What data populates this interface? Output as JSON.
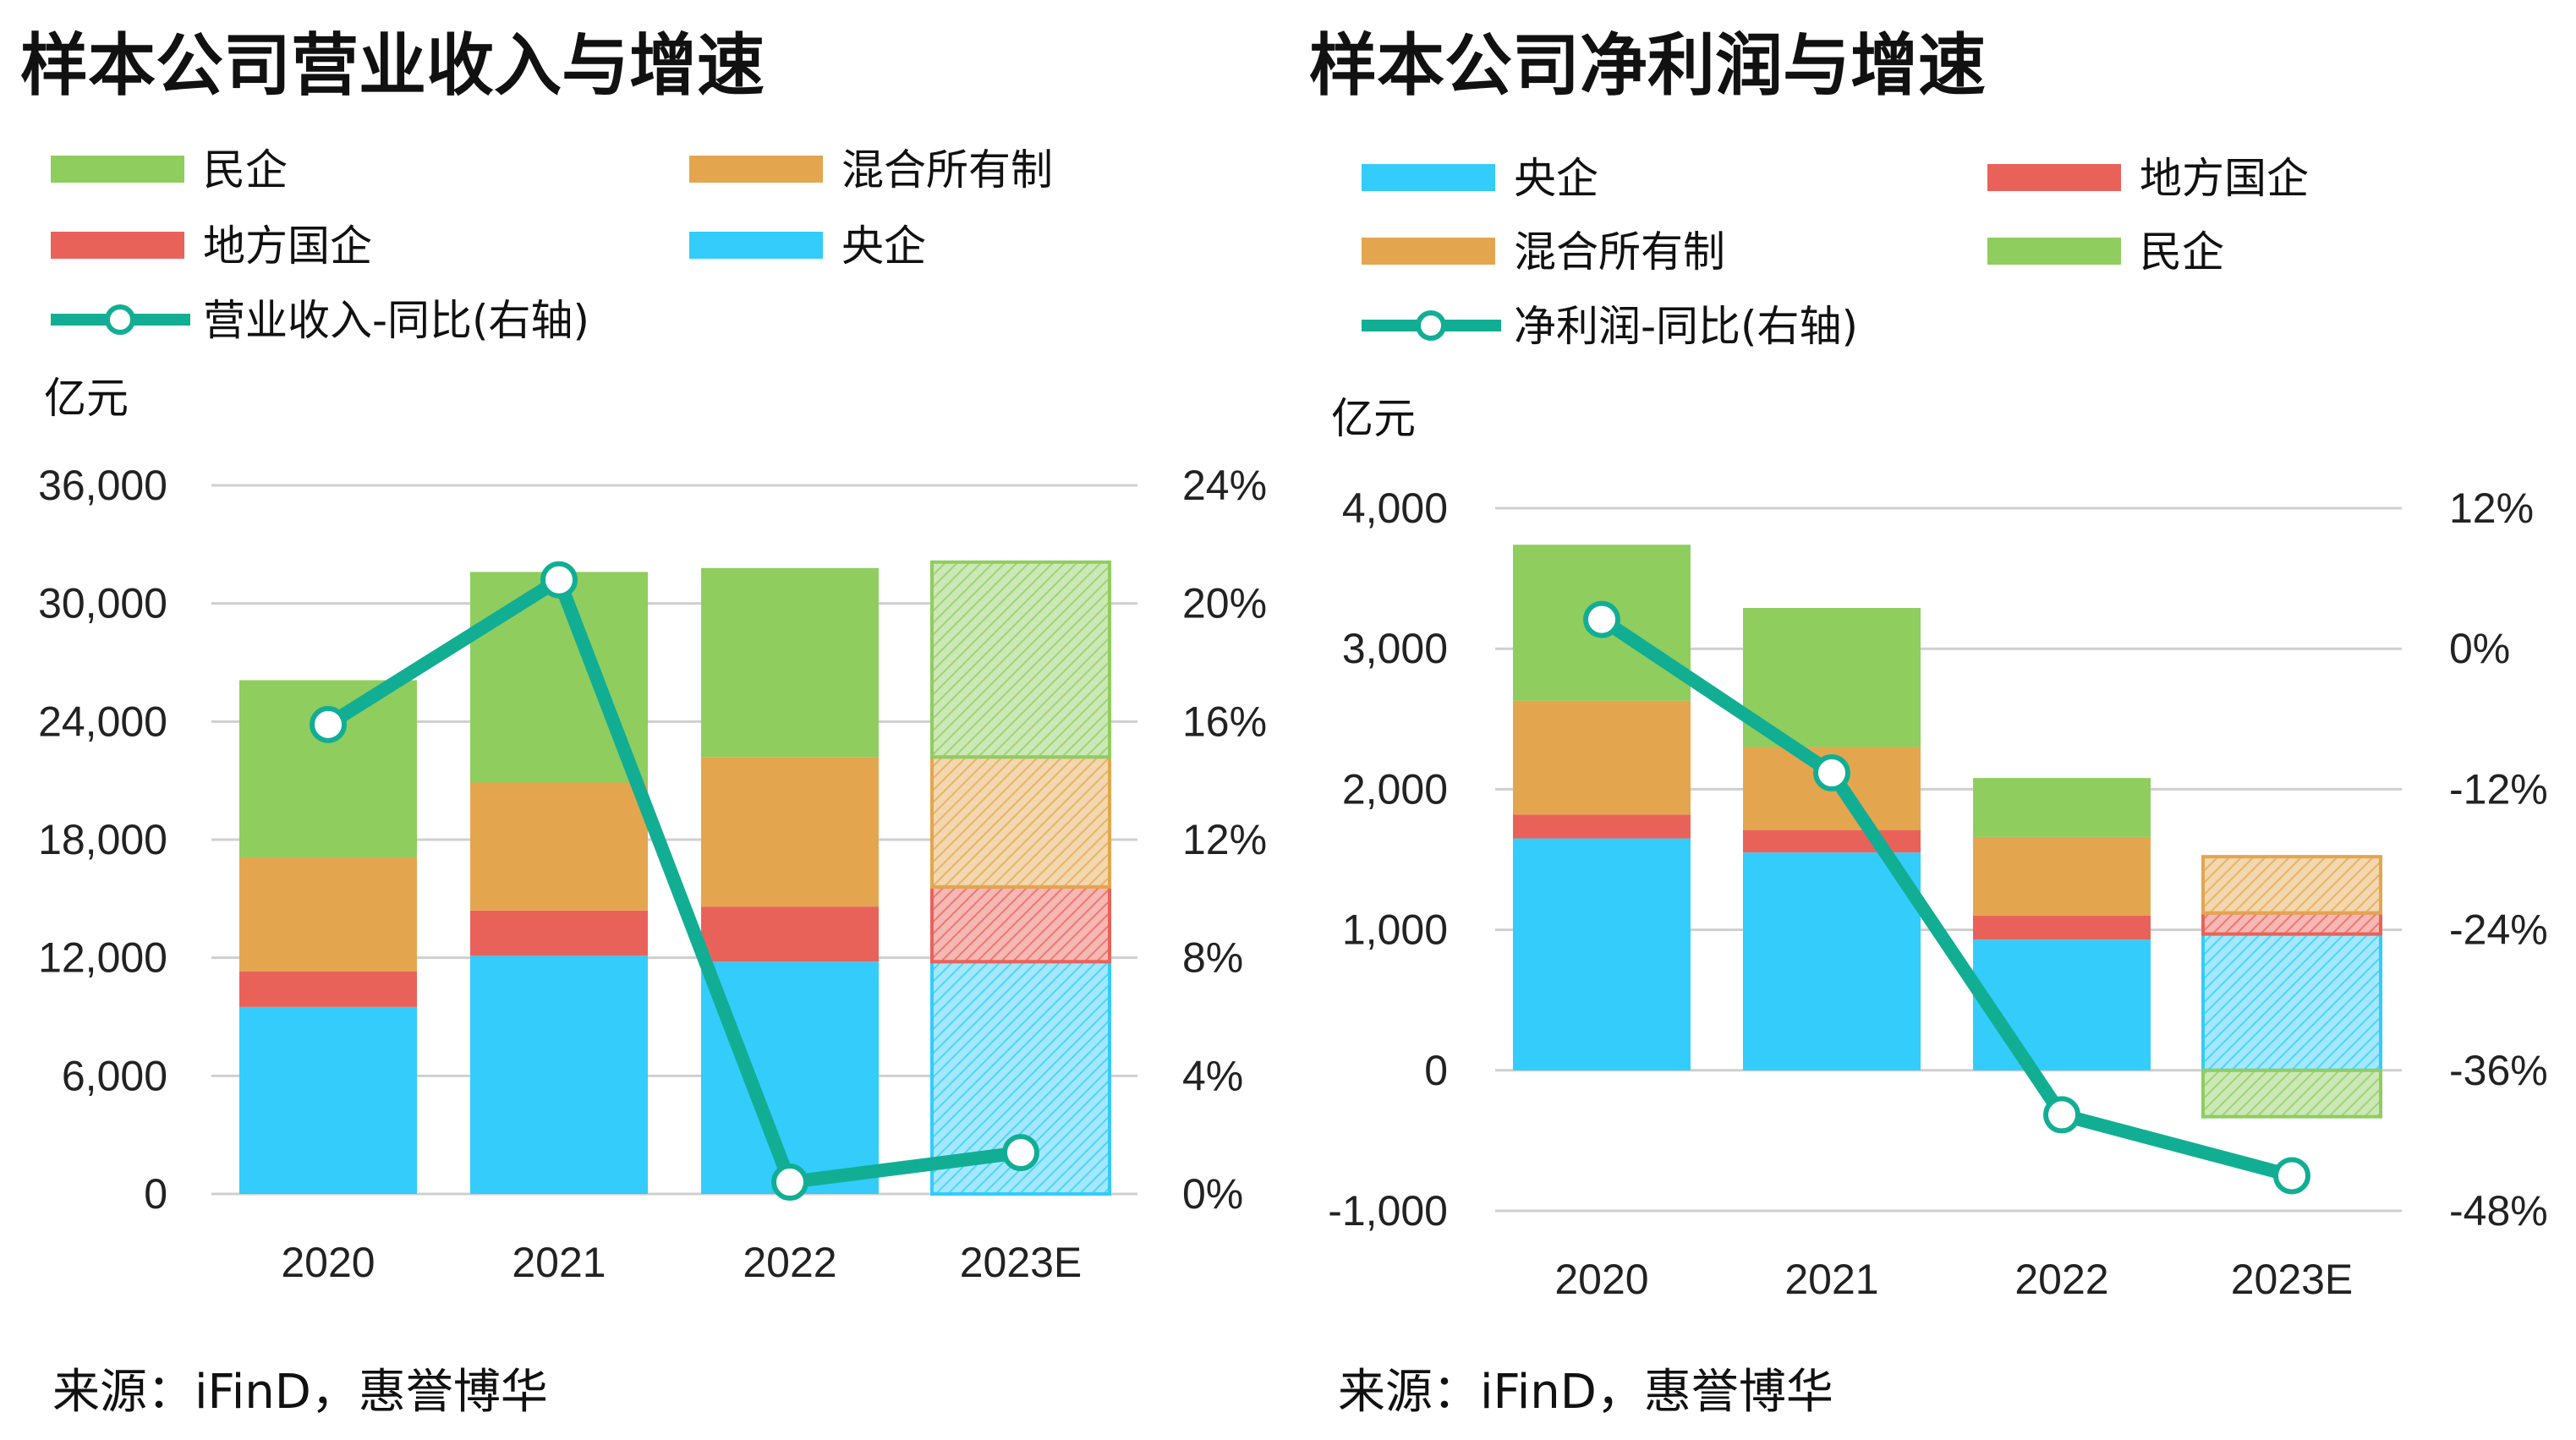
{
  "source_note": "来源：iFinD，惠誉博华",
  "colors": {
    "central_soe": "#33ccfb",
    "local_soe": "#e96259",
    "mixed": "#e3a64e",
    "private": "#8fcd5f",
    "line": "#12ae94"
  },
  "chart_data": [
    {
      "type": "bar",
      "stacked": true,
      "title": "样本公司营业收入与增速",
      "y_unit": "亿元",
      "categories": [
        "2020",
        "2021",
        "2022",
        "2023E"
      ],
      "forecast_categories": [
        "2023E"
      ],
      "ylim": [
        0,
        36000
      ],
      "yticks": [
        "0",
        "6,000",
        "12,000",
        "18,000",
        "24,000",
        "30,000",
        "36,000"
      ],
      "y2lim": [
        0,
        24
      ],
      "y2ticks": [
        "0%",
        "4%",
        "8%",
        "12%",
        "16%",
        "20%",
        "24%"
      ],
      "grid": true,
      "legend_order": [
        "民企",
        "混合所有制",
        "地方国企",
        "央企",
        "营业收入-同比(右轴)"
      ],
      "series": [
        {
          "name": "央企",
          "color": "#33ccfb",
          "values": [
            9500,
            12100,
            11800,
            11800
          ]
        },
        {
          "name": "地方国企",
          "color": "#e96259",
          "values": [
            1800,
            2300,
            2800,
            3800
          ]
        },
        {
          "name": "混合所有制",
          "color": "#e3a64e",
          "values": [
            5800,
            6500,
            7600,
            6600
          ]
        },
        {
          "name": "民企",
          "color": "#8fcd5f",
          "values": [
            9000,
            10700,
            9600,
            9900
          ]
        }
      ],
      "line": {
        "name": "营业收入-同比(右轴)",
        "color": "#12ae94",
        "axis": "right",
        "values": [
          15.9,
          20.8,
          0.4,
          1.4
        ]
      }
    },
    {
      "type": "bar",
      "stacked": true,
      "title": "样本公司净利润与增速",
      "y_unit": "亿元",
      "categories": [
        "2020",
        "2021",
        "2022",
        "2023E"
      ],
      "forecast_categories": [
        "2023E"
      ],
      "ylim": [
        -1000,
        4000
      ],
      "yticks": [
        "-1,000",
        "0",
        "1,000",
        "2,000",
        "3,000",
        "4,000"
      ],
      "y2lim": [
        -48,
        12
      ],
      "y2ticks": [
        "-48%",
        "-36%",
        "-24%",
        "-12%",
        "0%",
        "12%"
      ],
      "grid": true,
      "legend_order": [
        "央企",
        "地方国企",
        "混合所有制",
        "民企",
        "净利润-同比(右轴)"
      ],
      "series": [
        {
          "name": "央企",
          "color": "#33ccfb",
          "values": [
            1650,
            1550,
            930,
            970
          ]
        },
        {
          "name": "地方国企",
          "color": "#e96259",
          "values": [
            170,
            160,
            170,
            150
          ]
        },
        {
          "name": "混合所有制",
          "color": "#e3a64e",
          "values": [
            810,
            590,
            560,
            400
          ]
        },
        {
          "name": "民企",
          "color": "#8fcd5f",
          "values": [
            1110,
            990,
            420,
            -330
          ]
        }
      ],
      "line": {
        "name": "净利润-同比(右轴)",
        "color": "#12ae94",
        "axis": "right",
        "values": [
          2.5,
          -10.6,
          -39.8,
          -45.0
        ]
      }
    }
  ]
}
